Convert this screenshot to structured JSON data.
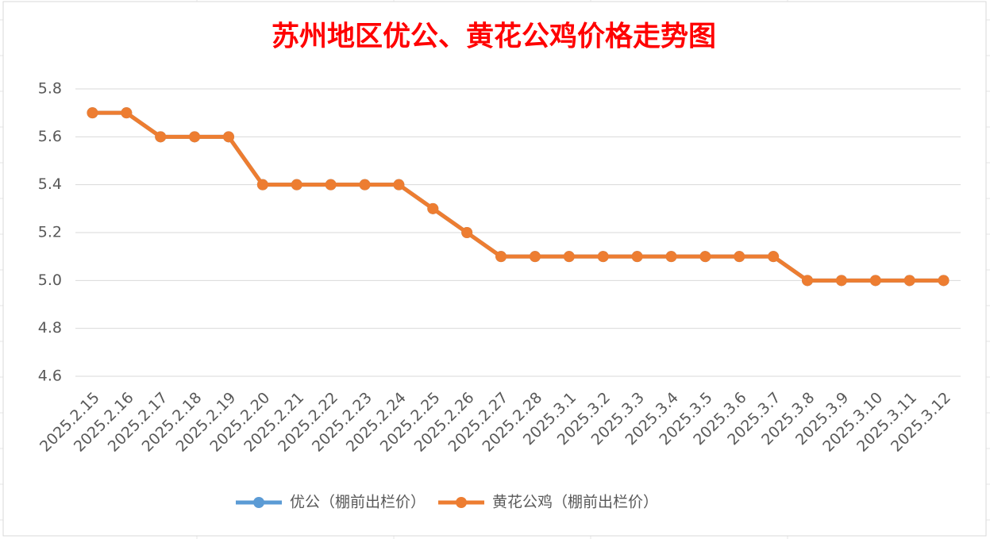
{
  "chart_data": {
    "type": "line",
    "title": "苏州地区优公、黄花公鸡价格走势图",
    "categories": [
      "2025.2.15",
      "2025.2.16",
      "2025.2.17",
      "2025.2.18",
      "2025.2.19",
      "2025.2.20",
      "2025.2.21",
      "2025.2.22",
      "2025.2.23",
      "2025.2.24",
      "2025.2.25",
      "2025.2.26",
      "2025.2.27",
      "2025.2.28",
      "2025.3.1",
      "2025.3.2",
      "2025.3.3",
      "2025.3.4",
      "2025.3.5",
      "2025.3.6",
      "2025.3.7",
      "2025.3.8",
      "2025.3.9",
      "2025.3.10",
      "2025.3.11",
      "2025.3.12"
    ],
    "series": [
      {
        "name": "优公（棚前出栏价）",
        "color": "#5b9bd5",
        "values": [
          5.7,
          5.7,
          5.6,
          5.6,
          5.6,
          5.4,
          5.4,
          5.4,
          5.4,
          5.4,
          5.3,
          5.2,
          5.1,
          5.1,
          5.1,
          5.1,
          5.1,
          5.1,
          5.1,
          5.1,
          5.1,
          5,
          5,
          5,
          5,
          5
        ]
      },
      {
        "name": "黄花公鸡（棚前出栏价）",
        "color": "#ed7d31",
        "values": [
          5.7,
          5.7,
          5.6,
          5.6,
          5.6,
          5.4,
          5.4,
          5.4,
          5.4,
          5.4,
          5.3,
          5.2,
          5.1,
          5.1,
          5.1,
          5.1,
          5.1,
          5.1,
          5.1,
          5.1,
          5.1,
          5,
          5,
          5,
          5,
          5
        ]
      }
    ],
    "ylim": [
      4.6,
      5.8
    ],
    "yticks": [
      4.6,
      4.8,
      {
        "value": 5,
        "label": "5.0"
      },
      5.2,
      5.4,
      5.6,
      5.8
    ],
    "grid": true,
    "legend": "bottom"
  }
}
